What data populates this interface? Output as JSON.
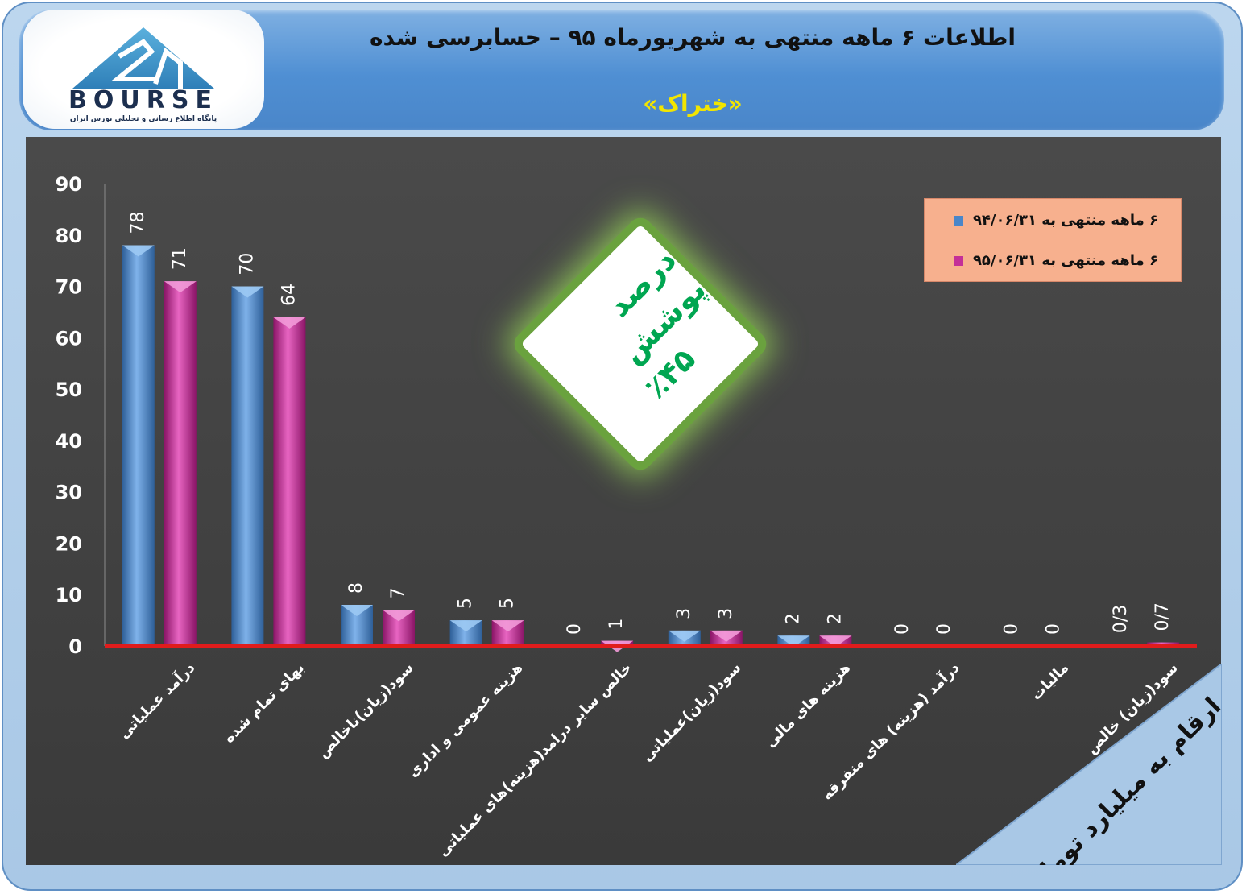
{
  "header": {
    "title": "اطلاعات ۶  ماهه منتهی به شهریورماه ۹۵ – حسابرسی شده",
    "subtitle": "«ختراک»"
  },
  "logo": {
    "brand": "BOURSE",
    "tagline": "پایگاه اطلاع رسانی و تحلیلی بورس ایران"
  },
  "badge": {
    "line1": "درصد پوشش",
    "line2": "٪۴۵"
  },
  "units_label": "ارقام به میلیارد تومان",
  "colors": {
    "series1": "#5b9bd5",
    "series2": "#d63aa8",
    "baseline": "#e01c1c",
    "plot_bg": "#414141",
    "header": "#5a96d8",
    "subtitle": "#f2e500",
    "badge_text": "#00a651"
  },
  "chart_data": {
    "type": "bar",
    "categories": [
      "درآمد عملیاتی",
      "بهای تمام شده",
      "سود(زیان)ناخالص",
      "هزینه عمومی و اداری",
      "خالص سایر درامد(هزینه)های عملیاتی",
      "سود(زیان)عملیاتی",
      "هزینه های مالی",
      "درآمد (هزینه) های متفرقه",
      "مالیات",
      "سود(زیان) خالص"
    ],
    "series": [
      {
        "name": "۶ ماهه منتهی به ۹۴/۰۶/۳۱",
        "values": [
          78,
          70,
          8,
          5,
          0,
          3,
          2,
          0,
          0,
          0.3
        ],
        "labels": [
          "78",
          "70",
          "8",
          "5",
          "0",
          "3",
          "2",
          "0",
          "0",
          "0/3"
        ]
      },
      {
        "name": "۶ ماهه منتهی به ۹۵/۰۶/۳۱",
        "values": [
          71,
          64,
          7,
          5,
          1,
          3,
          2,
          0,
          0,
          0.7
        ],
        "labels": [
          "71",
          "64",
          "7",
          "5",
          "1",
          "3",
          "2",
          "0",
          "0",
          "0/7"
        ]
      }
    ],
    "yticks": [
      "0",
      "10",
      "20",
      "30",
      "40",
      "50",
      "60",
      "70",
      "80",
      "90"
    ],
    "ylim": [
      0,
      90
    ],
    "legend_position": "top-right",
    "grid": false
  }
}
